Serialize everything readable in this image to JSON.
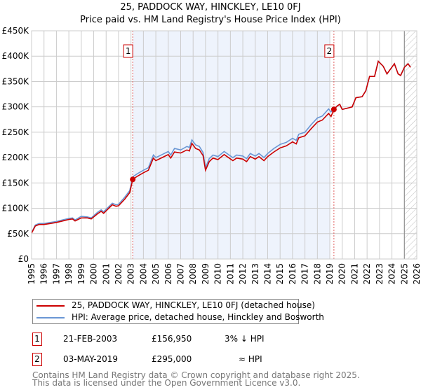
{
  "chart_data": {
    "type": "line",
    "title": "25, PADDOCK WAY, HINCKLEY, LE10 0FJ",
    "subtitle": "Price paid vs. HM Land Registry's House Price Index (HPI)",
    "xlim": [
      1995,
      2026
    ],
    "ylim": [
      0,
      450000
    ],
    "y_ticks": [
      {
        "v": 0,
        "label": "£0"
      },
      {
        "v": 50000,
        "label": "£50K"
      },
      {
        "v": 100000,
        "label": "£100K"
      },
      {
        "v": 150000,
        "label": "£150K"
      },
      {
        "v": 200000,
        "label": "£200K"
      },
      {
        "v": 250000,
        "label": "£250K"
      },
      {
        "v": 300000,
        "label": "£300K"
      },
      {
        "v": 350000,
        "label": "£350K"
      },
      {
        "v": 400000,
        "label": "£400K"
      },
      {
        "v": 450000,
        "label": "£450K"
      }
    ],
    "x_ticks": [
      "1995",
      "1996",
      "1997",
      "1998",
      "1999",
      "2000",
      "2001",
      "2002",
      "2003",
      "2004",
      "2005",
      "2006",
      "2007",
      "2008",
      "2009",
      "2010",
      "2011",
      "2012",
      "2013",
      "2014",
      "2015",
      "2016",
      "2017",
      "2018",
      "2019",
      "2020",
      "2021",
      "2022",
      "2023",
      "2024",
      "2025",
      "2026"
    ],
    "grid": true,
    "shaded_range": [
      2003.14,
      2019.0
    ],
    "hatched_from": 2025.0,
    "x": [
      1995.0,
      1995.3,
      1995.6,
      1996,
      1996.5,
      1997,
      1997.5,
      1998,
      1998.3,
      1998.5,
      1999,
      1999.5,
      1999.8,
      2000.3,
      2000.6,
      2000.8,
      2001,
      2001.5,
      2001.8,
      2002,
      2002.5,
      2002.9,
      2003.14,
      2003.5,
      2004,
      2004.4,
      2004.8,
      2005,
      2005.5,
      2006,
      2006.2,
      2006.5,
      2007,
      2007.5,
      2007.7,
      2007.9,
      2008.2,
      2008.5,
      2008.8,
      2009,
      2009.3,
      2009.6,
      2010,
      2010.5,
      2010.9,
      2011.2,
      2011.5,
      2012,
      2012.3,
      2012.6,
      2013,
      2013.3,
      2013.7,
      2014,
      2014.5,
      2015,
      2015.5,
      2016,
      2016.3,
      2016.5,
      2017,
      2017.5,
      2018,
      2018.4,
      2018.9,
      2019.1,
      2019.33,
      2019.6,
      2019.8,
      2020,
      2020.5,
      2020.8,
      2021.1,
      2021.6,
      2021.9,
      2022.2,
      2022.6,
      2022.9,
      2023.3,
      2023.6,
      2023.9,
      2024.2,
      2024.5,
      2024.7,
      2025.0,
      2025.3,
      2025.5
    ],
    "series": [
      {
        "name": "25, PADDOCK WAY, HINCKLEY, LE10 0FJ (detached house)",
        "color": "#cc0000",
        "values": [
          51,
          65,
          68,
          68,
          70,
          72,
          75,
          78,
          79,
          75,
          81,
          81,
          79,
          89,
          94,
          90,
          95,
          107,
          104,
          105,
          118,
          131,
          157,
          163,
          170,
          175,
          199,
          194,
          200,
          206,
          199,
          211,
          209,
          215,
          213,
          228,
          218,
          215,
          204,
          175,
          192,
          199,
          196,
          206,
          199,
          194,
          199,
          197,
          192,
          202,
          197,
          202,
          194,
          202,
          211,
          219,
          223,
          231,
          227,
          239,
          243,
          257,
          270,
          274,
          287,
          281,
          295,
          302,
          305,
          295,
          298,
          300,
          318,
          320,
          332,
          360,
          360,
          390,
          380,
          365,
          375,
          385,
          365,
          362,
          378,
          385,
          378
        ]
      },
      {
        "name": "HPI: Average price, detached house, Hinckley and Bosworth",
        "color": "#6a96d4",
        "values": [
          52,
          67,
          70,
          70,
          72,
          74,
          77,
          80,
          81,
          77,
          84,
          83,
          81,
          92,
          97,
          93,
          98,
          110,
          107,
          108,
          122,
          135,
          162,
          168,
          175,
          180,
          205,
          200,
          206,
          212,
          205,
          218,
          215,
          222,
          220,
          235,
          225,
          222,
          210,
          180,
          198,
          205,
          202,
          212,
          205,
          200,
          205,
          203,
          198,
          208,
          203,
          208,
          200,
          208,
          218,
          226,
          230,
          238,
          234,
          246,
          250,
          265,
          278,
          282,
          296,
          290,
          295,
          302,
          305,
          295,
          298,
          300,
          318,
          320,
          332,
          360,
          360,
          390,
          380,
          365,
          375,
          385,
          365,
          362,
          378,
          385,
          378
        ]
      }
    ],
    "value_unit": "thousand GBP",
    "sales": [
      {
        "id": "1",
        "x": 2003.14,
        "y": 156950,
        "date": "21-FEB-2003",
        "price": "£156,950",
        "hpi": "3% ↓ HPI"
      },
      {
        "id": "2",
        "x": 2019.33,
        "y": 295000,
        "date": "03-MAY-2019",
        "price": "£295,000",
        "hpi": "≈ HPI"
      }
    ],
    "legend_placement": "below"
  },
  "footer": {
    "line1": "Contains HM Land Registry data © Crown copyright and database right 2025.",
    "line2": "This data is licensed under the Open Government Licence v3.0."
  }
}
